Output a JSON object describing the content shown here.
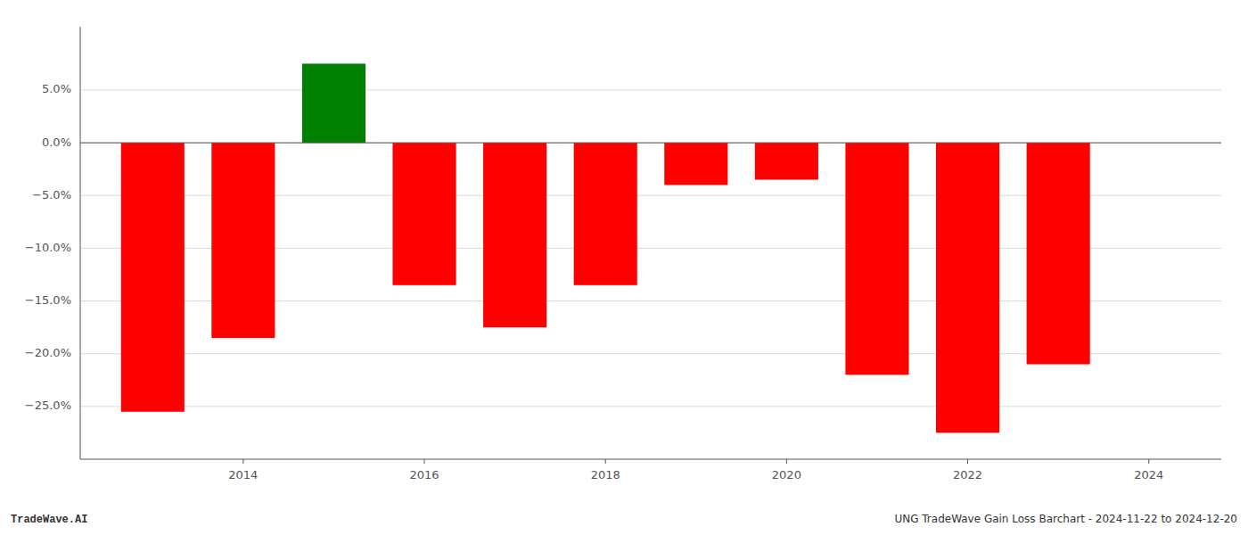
{
  "chart_data": {
    "type": "bar",
    "x": [
      2013,
      2014,
      2015,
      2016,
      2017,
      2018,
      2019,
      2020,
      2021,
      2022,
      2023
    ],
    "values": [
      -25.5,
      -18.5,
      7.5,
      -13.5,
      -17.5,
      -13.5,
      -4.0,
      -3.5,
      -22.0,
      -27.5,
      -21.0
    ],
    "colors": [
      "#ff0000",
      "#ff0000",
      "#008000",
      "#ff0000",
      "#ff0000",
      "#ff0000",
      "#ff0000",
      "#ff0000",
      "#ff0000",
      "#ff0000",
      "#ff0000"
    ],
    "xlim": [
      2012.2,
      2024.8
    ],
    "xticks": [
      2014,
      2016,
      2018,
      2020,
      2022,
      2024
    ],
    "ylim": [
      -30,
      11
    ],
    "yticks": [
      {
        "value": 5.0,
        "label": "5.0%"
      },
      {
        "value": 0.0,
        "label": "0.0%"
      },
      {
        "value": -5.0,
        "label": "−5.0%"
      },
      {
        "value": -10.0,
        "label": "−10.0%"
      },
      {
        "value": -15.0,
        "label": "−15.0%"
      },
      {
        "value": -20.0,
        "label": "−20.0%"
      },
      {
        "value": -25.0,
        "label": "−25.0%"
      }
    ],
    "grid": true,
    "annotations": [
      "TradeWave.AI",
      "UNG TradeWave Gain Loss Barchart - 2024-11-22 to 2024-12-20"
    ]
  }
}
